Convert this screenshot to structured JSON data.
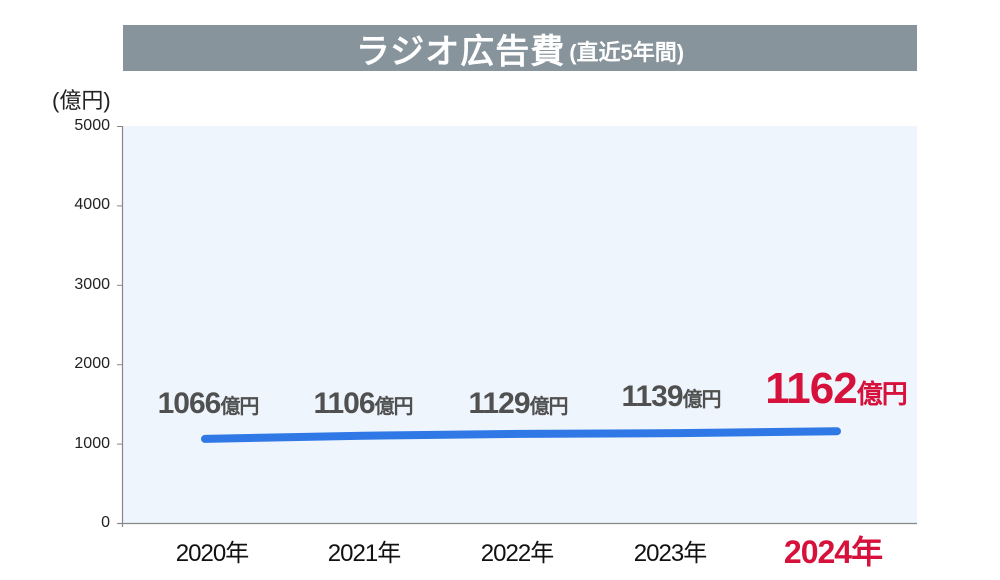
{
  "header": {
    "title": "ラジオ広告費",
    "subtitle": "(直近5年間)",
    "bar_color": "#87949b"
  },
  "axis": {
    "y_unit_label": "(億円)",
    "y_ticks": [
      "5000",
      "4000",
      "3000",
      "2000",
      "1000",
      "0"
    ],
    "x_ticks": [
      "2020年",
      "2021年",
      "2022年",
      "2023年",
      "2024年"
    ]
  },
  "labels": [
    {
      "num": "1066",
      "unit": "億円"
    },
    {
      "num": "1106",
      "unit": "億円"
    },
    {
      "num": "1129",
      "unit": "億円"
    },
    {
      "num": "1139",
      "unit": "億円"
    },
    {
      "num": "1162",
      "unit": "億円"
    }
  ],
  "colors": {
    "line": "#2f78e6",
    "highlight": "#d6123c",
    "plot_background": "#eef5fc",
    "label_text": "#505050"
  },
  "chart_data": {
    "type": "line",
    "title": "ラジオ広告費(直近5年間)",
    "xlabel": "",
    "ylabel": "(億円)",
    "categories": [
      "2020年",
      "2021年",
      "2022年",
      "2023年",
      "2024年"
    ],
    "series": [
      {
        "name": "ラジオ広告費",
        "values": [
          1066,
          1106,
          1129,
          1139,
          1162
        ]
      }
    ],
    "data_labels": [
      "1066億円",
      "1106億円",
      "1129億円",
      "1139億円",
      "1162億円"
    ],
    "highlighted_category": "2024年",
    "ylim": [
      0,
      5000
    ],
    "yticks": [
      0,
      1000,
      2000,
      3000,
      4000,
      5000
    ],
    "grid": false,
    "legend": "none"
  }
}
